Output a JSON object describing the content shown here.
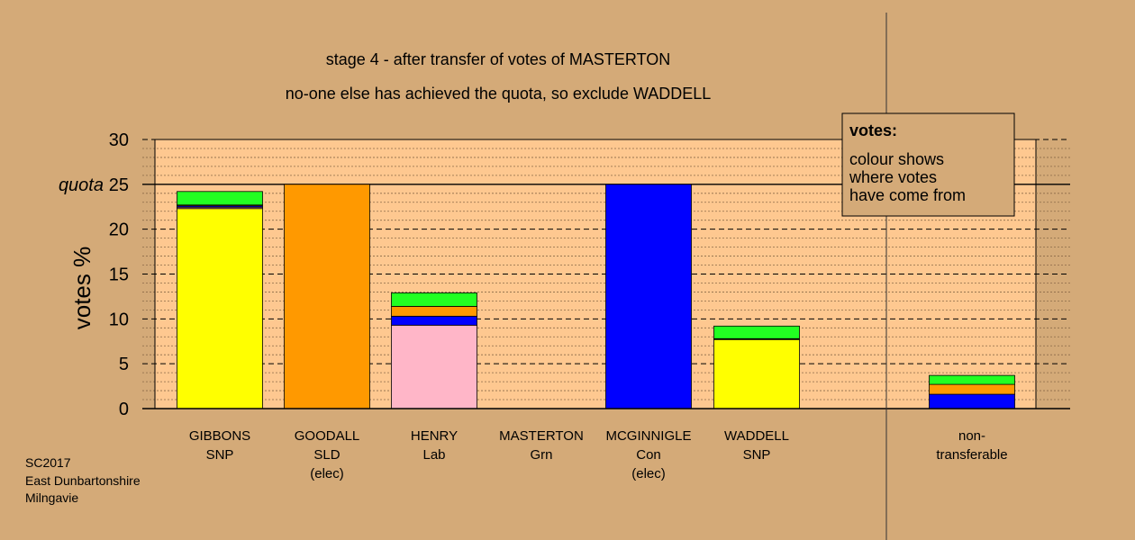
{
  "chart_data": {
    "type": "bar",
    "stacked": true,
    "title": "stage 4 - after transfer of votes of MASTERTON",
    "subtitle": "no-one else has achieved the quota, so exclude WADDELL",
    "ylabel": "votes %",
    "ylim": [
      0,
      30
    ],
    "yticks": [
      "0",
      "5",
      "10",
      "15",
      "20",
      "25",
      "30"
    ],
    "quota": {
      "label": "quota",
      "value": 25
    },
    "grid": true,
    "categories": [
      {
        "lines": [
          "GIBBONS",
          "SNP"
        ],
        "segments": [
          {
            "color": "#ffff00",
            "value": 22.3
          },
          {
            "color": "#ffa0a8",
            "value": 0.15
          },
          {
            "color": "#0000ff",
            "value": 0.15
          },
          {
            "color": "#ff9900",
            "value": 0.1
          },
          {
            "color": "#22ff22",
            "value": 1.5
          }
        ]
      },
      {
        "lines": [
          "GOODALL",
          "SLD",
          "(elec)"
        ],
        "segments": [
          {
            "color": "#ff9900",
            "value": 25.0
          }
        ]
      },
      {
        "lines": [
          "HENRY",
          "Lab"
        ],
        "segments": [
          {
            "color": "#ffb6c8",
            "value": 9.3
          },
          {
            "color": "#0000ff",
            "value": 1.0
          },
          {
            "color": "#ff9900",
            "value": 1.1
          },
          {
            "color": "#22ff22",
            "value": 1.5
          }
        ]
      },
      {
        "lines": [
          "MASTERTON",
          "Grn"
        ],
        "segments": []
      },
      {
        "lines": [
          "MCGINNIGLE",
          "Con",
          "(elec)"
        ],
        "segments": [
          {
            "color": "#0000ff",
            "value": 25.0
          }
        ]
      },
      {
        "lines": [
          "WADDELL",
          "SNP"
        ],
        "segments": [
          {
            "color": "#ffff00",
            "value": 7.7
          },
          {
            "color": "#000000",
            "value": 0.1
          },
          {
            "color": "#22ff22",
            "value": 1.4
          }
        ]
      },
      {
        "lines": [
          "non-",
          "transferable"
        ],
        "segments": [
          {
            "color": "#0000ff",
            "value": 1.6
          },
          {
            "color": "#ff9900",
            "value": 1.1
          },
          {
            "color": "#22ff22",
            "value": 1.0
          }
        ]
      }
    ],
    "legend": {
      "placement": "top-right",
      "title": "votes:",
      "lines": [
        "colour shows",
        "where votes",
        "have come from"
      ]
    }
  },
  "footer": {
    "lines": [
      "SC2017",
      "East Dunbartonshire",
      "Milngavie"
    ]
  }
}
